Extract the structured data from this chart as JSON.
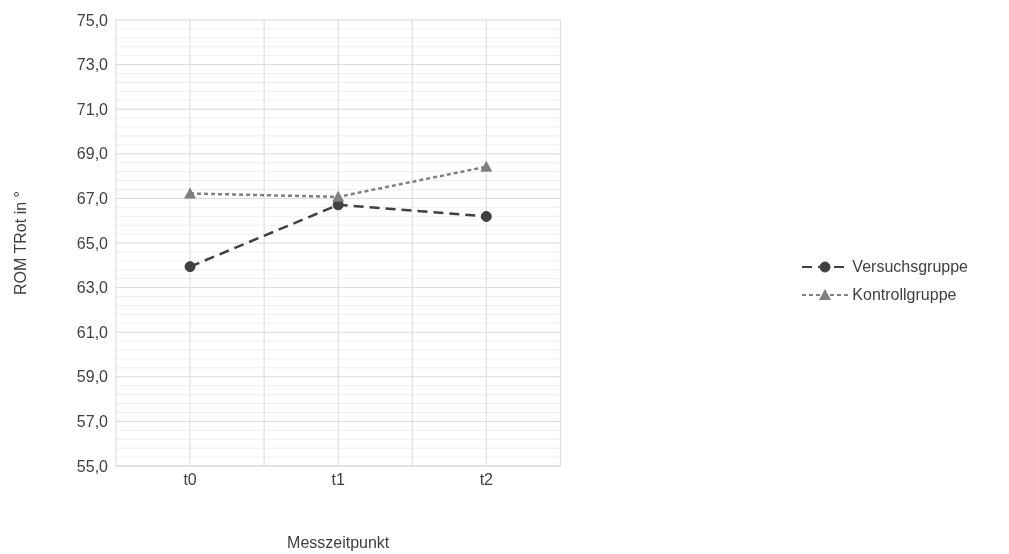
{
  "chart_data": {
    "type": "line",
    "xlabel": "Messzeitpunkt",
    "ylabel": "ROM TRot in °",
    "categories": [
      "t0",
      "t1",
      "t2"
    ],
    "series": [
      {
        "name": "Versuchsgruppe",
        "color": "#404040",
        "values": [
          63.94,
          66.71,
          66.19
        ],
        "marker": "circle",
        "line_style": "dashed"
      },
      {
        "name": "Kontrollgruppe",
        "color": "#808080",
        "values": [
          67.22,
          67.07,
          68.42
        ],
        "marker": "triangle",
        "line_style": "dotted"
      }
    ],
    "ylim": [
      55,
      75
    ],
    "yticks": [
      {
        "value": 55,
        "label": "55,0"
      },
      {
        "value": 57,
        "label": "57,0"
      },
      {
        "value": 59,
        "label": "59,0"
      },
      {
        "value": 61,
        "label": "61,0"
      },
      {
        "value": 63,
        "label": "63,0"
      },
      {
        "value": 65,
        "label": "65,0"
      },
      {
        "value": 67,
        "label": "67,0"
      },
      {
        "value": 69,
        "label": "69,0"
      },
      {
        "value": 71,
        "label": "71,0"
      },
      {
        "value": 73,
        "label": "73,0"
      },
      {
        "value": 75,
        "label": "75,0"
      }
    ],
    "grid": true,
    "legend": "right"
  }
}
